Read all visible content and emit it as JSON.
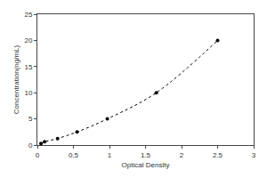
{
  "chart_data": {
    "type": "scatter",
    "x_label": "Optical Density",
    "y_label": "Concentration(ng/mL)",
    "x": [
      0.05,
      0.1,
      0.28,
      0.55,
      0.97,
      1.65,
      2.5
    ],
    "values": [
      0.31,
      0.63,
      1.25,
      2.5,
      5,
      10,
      20
    ],
    "color": "#000000",
    "marker": "circle",
    "line_style": "dotted",
    "xlim": [
      0,
      3
    ],
    "xticks": [
      0,
      0.5,
      1,
      1.5,
      2,
      2.5,
      3
    ],
    "ylim": [
      0,
      25
    ],
    "yticks": [
      0,
      5,
      10,
      15,
      20,
      25
    ],
    "grid": false
  }
}
